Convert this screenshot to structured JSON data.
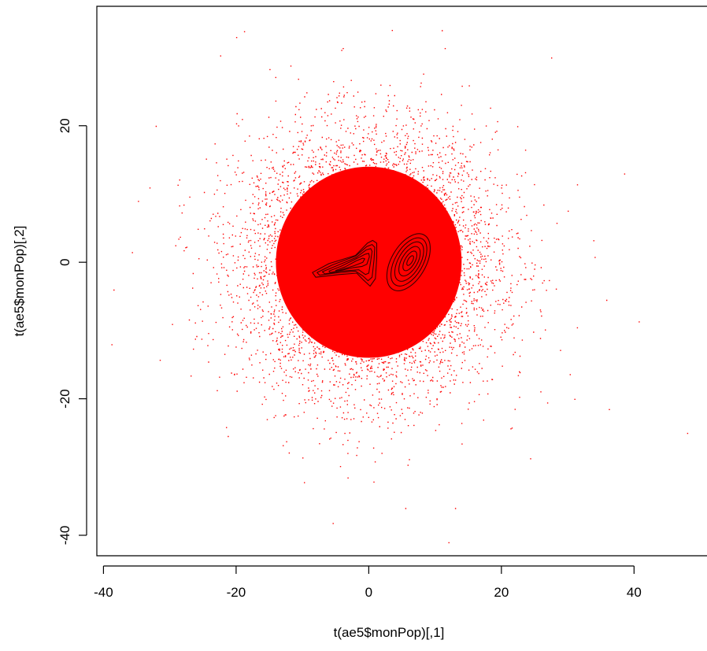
{
  "chart_data": {
    "type": "scatter",
    "title": "",
    "xlabel": "t(ae5$monPop)[,1]",
    "ylabel": "t(ae5$monPop)[,2]",
    "xlim": [
      -41,
      51
    ],
    "ylim": [
      -43,
      37.5
    ],
    "x_ticks": [
      -40,
      -20,
      0,
      20,
      40
    ],
    "y_ticks": [
      -40,
      -20,
      0,
      20
    ],
    "x_tick_labels": [
      "-40",
      "-20",
      "0",
      "20",
      "40"
    ],
    "y_tick_labels": [
      "-40",
      "-20",
      "0",
      "20"
    ],
    "grid": false,
    "legend": "none",
    "series": [
      {
        "kind": "points",
        "distribution": "bivariate normal cloud",
        "center": [
          0,
          0
        ],
        "sd": [
          9.5,
          9.5
        ],
        "color": "#ff0000",
        "notable_outliers": [
          [
            48,
            -25
          ],
          [
            38.5,
            13
          ],
          [
            35.8,
            -5.5
          ],
          [
            36.2,
            -21.5
          ],
          [
            -38.8,
            -12
          ],
          [
            -38.5,
            -4
          ],
          [
            -34.8,
            9
          ],
          [
            -20,
            33
          ],
          [
            11,
            34
          ],
          [
            12,
            -41
          ],
          [
            13,
            -36
          ],
          [
            5.5,
            -36
          ],
          [
            27.5,
            30
          ],
          [
            31,
            -20
          ]
        ]
      },
      {
        "kind": "contours",
        "color": "#3a0000",
        "clusters": [
          {
            "description": "elongated diagonal density contour cluster",
            "center": [
              -3,
              -0.5
            ],
            "levels": [
              {
                "points": [
                  [
                    -8.5,
                    -1.5
                  ],
                  [
                    -6,
                    -0.2
                  ],
                  [
                    -2,
                    1
                  ],
                  [
                    -0.2,
                    2.8
                  ],
                  [
                    0.6,
                    3.2
                  ],
                  [
                    1.2,
                    2.8
                  ],
                  [
                    1.2,
                    0.6
                  ],
                  [
                    1,
                    -2.4
                  ],
                  [
                    0.2,
                    -3.5
                  ],
                  [
                    -0.8,
                    -2.6
                  ],
                  [
                    -1.8,
                    -1.6
                  ],
                  [
                    -4.5,
                    -1.8
                  ],
                  [
                    -8,
                    -2.2
                  ]
                ]
              },
              {
                "points": [
                  [
                    -7.8,
                    -1.5
                  ],
                  [
                    -5.5,
                    -0.4
                  ],
                  [
                    -2,
                    0.9
                  ],
                  [
                    -0.3,
                    2.3
                  ],
                  [
                    0.5,
                    2.6
                  ],
                  [
                    0.9,
                    2.2
                  ],
                  [
                    0.8,
                    0.4
                  ],
                  [
                    0.5,
                    -2.2
                  ],
                  [
                    -0.1,
                    -2.7
                  ],
                  [
                    -0.9,
                    -2
                  ],
                  [
                    -2,
                    -1.3
                  ],
                  [
                    -4.5,
                    -1.5
                  ],
                  [
                    -7.4,
                    -1.9
                  ]
                ]
              },
              {
                "points": [
                  [
                    -7,
                    -1.4
                  ],
                  [
                    -4.8,
                    -0.5
                  ],
                  [
                    -1.9,
                    0.7
                  ],
                  [
                    -0.4,
                    1.8
                  ],
                  [
                    0.3,
                    2
                  ],
                  [
                    0.5,
                    1.6
                  ],
                  [
                    0.3,
                    0.2
                  ],
                  [
                    0,
                    -1.6
                  ],
                  [
                    -0.5,
                    -1.8
                  ],
                  [
                    -1.5,
                    -1.1
                  ],
                  [
                    -4.2,
                    -1.3
                  ],
                  [
                    -6.6,
                    -1.7
                  ]
                ]
              },
              {
                "points": [
                  [
                    -6,
                    -1.3
                  ],
                  [
                    -4.2,
                    -0.6
                  ],
                  [
                    -1.9,
                    0.5
                  ],
                  [
                    -0.5,
                    1.2
                  ],
                  [
                    0,
                    1.3
                  ],
                  [
                    0.1,
                    0.8
                  ],
                  [
                    -0.3,
                    -0.3
                  ],
                  [
                    -1,
                    -0.6
                  ],
                  [
                    -2.4,
                    -0.8
                  ],
                  [
                    -4.3,
                    -1.2
                  ],
                  [
                    -5.8,
                    -1.5
                  ]
                ]
              },
              {
                "points": [
                  [
                    -5,
                    -1.2
                  ],
                  [
                    -3.6,
                    -0.7
                  ],
                  [
                    -1.9,
                    0.2
                  ],
                  [
                    -0.9,
                    0.6
                  ],
                  [
                    -0.6,
                    0.5
                  ],
                  [
                    -0.9,
                    0
                  ],
                  [
                    -2.2,
                    -0.5
                  ],
                  [
                    -3.8,
                    -1
                  ],
                  [
                    -4.9,
                    -1.3
                  ]
                ]
              }
            ]
          },
          {
            "description": "ellipse density contour cluster",
            "center": [
              6,
              0
            ],
            "levels": [
              {
                "ellipse": {
                  "cx": 6,
                  "cy": 0,
                  "rx": 2.6,
                  "ry": 4.6,
                  "angle": -30
                }
              },
              {
                "ellipse": {
                  "cx": 6.05,
                  "cy": 0.05,
                  "rx": 2.1,
                  "ry": 3.9,
                  "angle": -30
                }
              },
              {
                "ellipse": {
                  "cx": 6.1,
                  "cy": 0.1,
                  "rx": 1.65,
                  "ry": 3.2,
                  "angle": -30
                }
              },
              {
                "ellipse": {
                  "cx": 6.15,
                  "cy": 0.15,
                  "rx": 1.2,
                  "ry": 2.4,
                  "angle": -30
                }
              },
              {
                "ellipse": {
                  "cx": 6.2,
                  "cy": 0.2,
                  "rx": 0.75,
                  "ry": 1.6,
                  "angle": -30
                }
              },
              {
                "ellipse": {
                  "cx": 6.25,
                  "cy": 0.25,
                  "rx": 0.35,
                  "ry": 0.8,
                  "angle": -30
                }
              }
            ]
          }
        ]
      }
    ]
  }
}
